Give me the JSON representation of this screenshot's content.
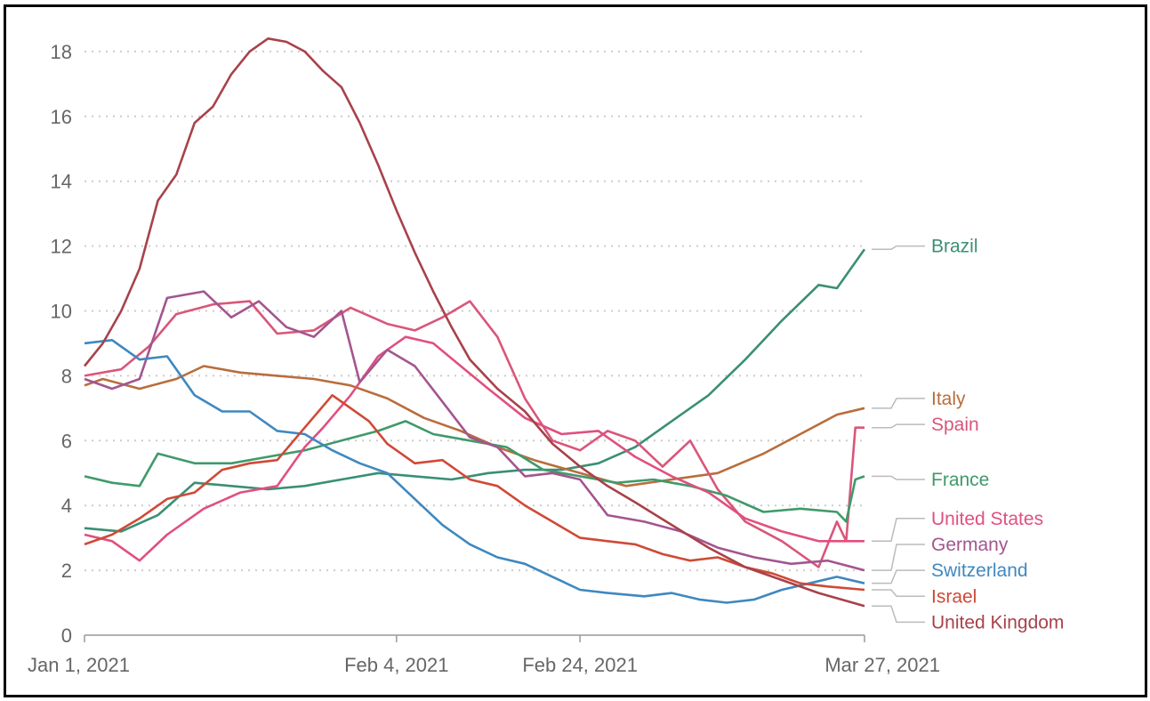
{
  "chart_data": {
    "type": "line",
    "title": "",
    "xlabel": "",
    "ylabel": "",
    "x_start": "2021-01-01",
    "x_end": "2021-03-27",
    "ylim": [
      0,
      18.8
    ],
    "y_ticks": [
      0,
      2,
      4,
      6,
      8,
      10,
      12,
      14,
      16,
      18
    ],
    "x_ticks": [
      {
        "date": "2021-01-01",
        "label": "Jan 1, 2021"
      },
      {
        "date": "2021-02-04",
        "label": "Feb 4, 2021"
      },
      {
        "date": "2021-02-24",
        "label": "Feb 24, 2021"
      },
      {
        "date": "2021-03-27",
        "label": "Mar 27, 2021"
      }
    ],
    "grid": "horizontal-dotted",
    "legend": "end-of-line labels, right",
    "series": [
      {
        "name": "Brazil",
        "color": "#3a8f74",
        "points": [
          [
            "2021-01-01",
            3.3
          ],
          [
            "2021-01-05",
            3.2
          ],
          [
            "2021-01-09",
            3.7
          ],
          [
            "2021-01-13",
            4.7
          ],
          [
            "2021-01-17",
            4.6
          ],
          [
            "2021-01-21",
            4.5
          ],
          [
            "2021-01-25",
            4.6
          ],
          [
            "2021-01-29",
            4.8
          ],
          [
            "2021-02-02",
            5.0
          ],
          [
            "2021-02-06",
            4.9
          ],
          [
            "2021-02-10",
            4.8
          ],
          [
            "2021-02-14",
            5.0
          ],
          [
            "2021-02-18",
            5.1
          ],
          [
            "2021-02-22",
            5.1
          ],
          [
            "2021-02-26",
            5.3
          ],
          [
            "2021-03-02",
            5.8
          ],
          [
            "2021-03-06",
            6.6
          ],
          [
            "2021-03-10",
            7.4
          ],
          [
            "2021-03-14",
            8.5
          ],
          [
            "2021-03-18",
            9.7
          ],
          [
            "2021-03-22",
            10.8
          ],
          [
            "2021-03-24",
            10.7
          ],
          [
            "2021-03-27",
            11.9
          ]
        ]
      },
      {
        "name": "Italy",
        "color": "#b96d3d",
        "points": [
          [
            "2021-01-01",
            7.7
          ],
          [
            "2021-01-03",
            7.9
          ],
          [
            "2021-01-07",
            7.6
          ],
          [
            "2021-01-11",
            7.9
          ],
          [
            "2021-01-14",
            8.3
          ],
          [
            "2021-01-18",
            8.1
          ],
          [
            "2021-01-22",
            8.0
          ],
          [
            "2021-01-26",
            7.9
          ],
          [
            "2021-01-30",
            7.7
          ],
          [
            "2021-02-03",
            7.3
          ],
          [
            "2021-02-07",
            6.7
          ],
          [
            "2021-02-11",
            6.3
          ],
          [
            "2021-02-15",
            5.8
          ],
          [
            "2021-02-19",
            5.4
          ],
          [
            "2021-02-24",
            5.0
          ],
          [
            "2021-03-01",
            4.6
          ],
          [
            "2021-03-06",
            4.8
          ],
          [
            "2021-03-11",
            5.0
          ],
          [
            "2021-03-16",
            5.6
          ],
          [
            "2021-03-20",
            6.2
          ],
          [
            "2021-03-24",
            6.8
          ],
          [
            "2021-03-27",
            7.0
          ]
        ]
      },
      {
        "name": "Spain",
        "color": "#d9567a",
        "points": [
          [
            "2021-01-01",
            8.0
          ],
          [
            "2021-01-05",
            8.2
          ],
          [
            "2021-01-08",
            8.9
          ],
          [
            "2021-01-11",
            9.9
          ],
          [
            "2021-01-15",
            10.2
          ],
          [
            "2021-01-19",
            10.3
          ],
          [
            "2021-01-22",
            9.3
          ],
          [
            "2021-01-26",
            9.4
          ],
          [
            "2021-01-30",
            10.1
          ],
          [
            "2021-02-03",
            9.6
          ],
          [
            "2021-02-06",
            9.4
          ],
          [
            "2021-02-09",
            9.8
          ],
          [
            "2021-02-12",
            10.3
          ],
          [
            "2021-02-15",
            9.2
          ],
          [
            "2021-02-18",
            7.3
          ],
          [
            "2021-02-21",
            6.0
          ],
          [
            "2021-02-24",
            5.7
          ],
          [
            "2021-02-27",
            6.3
          ],
          [
            "2021-03-02",
            6.0
          ],
          [
            "2021-03-05",
            5.2
          ],
          [
            "2021-03-08",
            6.0
          ],
          [
            "2021-03-11",
            4.5
          ],
          [
            "2021-03-14",
            3.5
          ],
          [
            "2021-03-18",
            2.9
          ],
          [
            "2021-03-22",
            2.1
          ],
          [
            "2021-03-24",
            3.5
          ],
          [
            "2021-03-25",
            2.9
          ],
          [
            "2021-03-26",
            6.4
          ],
          [
            "2021-03-27",
            6.4
          ]
        ]
      },
      {
        "name": "France",
        "color": "#3f9a6a",
        "points": [
          [
            "2021-01-01",
            4.9
          ],
          [
            "2021-01-04",
            4.7
          ],
          [
            "2021-01-07",
            4.6
          ],
          [
            "2021-01-09",
            5.6
          ],
          [
            "2021-01-13",
            5.3
          ],
          [
            "2021-01-17",
            5.3
          ],
          [
            "2021-01-21",
            5.5
          ],
          [
            "2021-01-25",
            5.7
          ],
          [
            "2021-01-29",
            6.0
          ],
          [
            "2021-02-02",
            6.3
          ],
          [
            "2021-02-05",
            6.6
          ],
          [
            "2021-02-08",
            6.2
          ],
          [
            "2021-02-12",
            6.0
          ],
          [
            "2021-02-16",
            5.8
          ],
          [
            "2021-02-20",
            5.1
          ],
          [
            "2021-02-24",
            4.9
          ],
          [
            "2021-02-28",
            4.7
          ],
          [
            "2021-03-04",
            4.8
          ],
          [
            "2021-03-08",
            4.6
          ],
          [
            "2021-03-12",
            4.3
          ],
          [
            "2021-03-16",
            3.8
          ],
          [
            "2021-03-20",
            3.9
          ],
          [
            "2021-03-24",
            3.8
          ],
          [
            "2021-03-25",
            3.5
          ],
          [
            "2021-03-26",
            4.8
          ],
          [
            "2021-03-27",
            4.9
          ]
        ]
      },
      {
        "name": "United States",
        "color": "#e0507f",
        "points": [
          [
            "2021-01-01",
            3.1
          ],
          [
            "2021-01-04",
            2.9
          ],
          [
            "2021-01-07",
            2.3
          ],
          [
            "2021-01-10",
            3.1
          ],
          [
            "2021-01-14",
            3.9
          ],
          [
            "2021-01-18",
            4.4
          ],
          [
            "2021-01-22",
            4.6
          ],
          [
            "2021-01-25",
            5.8
          ],
          [
            "2021-01-27",
            6.4
          ],
          [
            "2021-01-30",
            7.4
          ],
          [
            "2021-02-02",
            8.6
          ],
          [
            "2021-02-05",
            9.2
          ],
          [
            "2021-02-08",
            9.0
          ],
          [
            "2021-02-11",
            8.3
          ],
          [
            "2021-02-14",
            7.6
          ],
          [
            "2021-02-18",
            6.7
          ],
          [
            "2021-02-22",
            6.2
          ],
          [
            "2021-02-26",
            6.3
          ],
          [
            "2021-03-02",
            5.5
          ],
          [
            "2021-03-06",
            4.9
          ],
          [
            "2021-03-10",
            4.4
          ],
          [
            "2021-03-14",
            3.6
          ],
          [
            "2021-03-18",
            3.2
          ],
          [
            "2021-03-22",
            2.9
          ],
          [
            "2021-03-27",
            2.9
          ]
        ]
      },
      {
        "name": "Germany",
        "color": "#a3558f",
        "points": [
          [
            "2021-01-01",
            7.9
          ],
          [
            "2021-01-04",
            7.6
          ],
          [
            "2021-01-07",
            7.9
          ],
          [
            "2021-01-10",
            10.4
          ],
          [
            "2021-01-14",
            10.6
          ],
          [
            "2021-01-17",
            9.8
          ],
          [
            "2021-01-20",
            10.3
          ],
          [
            "2021-01-23",
            9.5
          ],
          [
            "2021-01-26",
            9.2
          ],
          [
            "2021-01-29",
            10.0
          ],
          [
            "2021-01-31",
            7.8
          ],
          [
            "2021-02-03",
            8.8
          ],
          [
            "2021-02-06",
            8.3
          ],
          [
            "2021-02-09",
            7.2
          ],
          [
            "2021-02-12",
            6.1
          ],
          [
            "2021-02-15",
            5.8
          ],
          [
            "2021-02-18",
            4.9
          ],
          [
            "2021-02-21",
            5.0
          ],
          [
            "2021-02-24",
            4.8
          ],
          [
            "2021-02-27",
            3.7
          ],
          [
            "2021-03-03",
            3.5
          ],
          [
            "2021-03-07",
            3.2
          ],
          [
            "2021-03-11",
            2.7
          ],
          [
            "2021-03-15",
            2.4
          ],
          [
            "2021-03-19",
            2.2
          ],
          [
            "2021-03-23",
            2.3
          ],
          [
            "2021-03-27",
            2.0
          ]
        ]
      },
      {
        "name": "Switzerland",
        "color": "#3f88bf",
        "points": [
          [
            "2021-01-01",
            9.0
          ],
          [
            "2021-01-04",
            9.1
          ],
          [
            "2021-01-07",
            8.5
          ],
          [
            "2021-01-10",
            8.6
          ],
          [
            "2021-01-13",
            7.4
          ],
          [
            "2021-01-16",
            6.9
          ],
          [
            "2021-01-19",
            6.9
          ],
          [
            "2021-01-22",
            6.3
          ],
          [
            "2021-01-25",
            6.2
          ],
          [
            "2021-01-28",
            5.7
          ],
          [
            "2021-01-31",
            5.3
          ],
          [
            "2021-02-03",
            5.0
          ],
          [
            "2021-02-06",
            4.2
          ],
          [
            "2021-02-09",
            3.4
          ],
          [
            "2021-02-12",
            2.8
          ],
          [
            "2021-02-15",
            2.4
          ],
          [
            "2021-02-18",
            2.2
          ],
          [
            "2021-02-21",
            1.8
          ],
          [
            "2021-02-24",
            1.4
          ],
          [
            "2021-02-27",
            1.3
          ],
          [
            "2021-03-03",
            1.2
          ],
          [
            "2021-03-06",
            1.3
          ],
          [
            "2021-03-09",
            1.1
          ],
          [
            "2021-03-12",
            1.0
          ],
          [
            "2021-03-15",
            1.1
          ],
          [
            "2021-03-18",
            1.4
          ],
          [
            "2021-03-21",
            1.6
          ],
          [
            "2021-03-24",
            1.8
          ],
          [
            "2021-03-27",
            1.6
          ]
        ]
      },
      {
        "name": "Israel",
        "color": "#cf4a36",
        "points": [
          [
            "2021-01-01",
            2.8
          ],
          [
            "2021-01-04",
            3.1
          ],
          [
            "2021-01-07",
            3.6
          ],
          [
            "2021-01-10",
            4.2
          ],
          [
            "2021-01-13",
            4.4
          ],
          [
            "2021-01-16",
            5.1
          ],
          [
            "2021-01-19",
            5.3
          ],
          [
            "2021-01-22",
            5.4
          ],
          [
            "2021-01-25",
            6.4
          ],
          [
            "2021-01-28",
            7.4
          ],
          [
            "2021-01-30",
            7.0
          ],
          [
            "2021-02-01",
            6.6
          ],
          [
            "2021-02-03",
            5.9
          ],
          [
            "2021-02-06",
            5.3
          ],
          [
            "2021-02-09",
            5.4
          ],
          [
            "2021-02-12",
            4.8
          ],
          [
            "2021-02-15",
            4.6
          ],
          [
            "2021-02-18",
            4.0
          ],
          [
            "2021-02-21",
            3.5
          ],
          [
            "2021-02-24",
            3.0
          ],
          [
            "2021-02-27",
            2.9
          ],
          [
            "2021-03-02",
            2.8
          ],
          [
            "2021-03-05",
            2.5
          ],
          [
            "2021-03-08",
            2.3
          ],
          [
            "2021-03-11",
            2.4
          ],
          [
            "2021-03-14",
            2.1
          ],
          [
            "2021-03-17",
            1.9
          ],
          [
            "2021-03-20",
            1.6
          ],
          [
            "2021-03-23",
            1.5
          ],
          [
            "2021-03-27",
            1.4
          ]
        ]
      },
      {
        "name": "United Kingdom",
        "color": "#a8424a",
        "points": [
          [
            "2021-01-01",
            8.3
          ],
          [
            "2021-01-03",
            9.0
          ],
          [
            "2021-01-05",
            10.0
          ],
          [
            "2021-01-07",
            11.3
          ],
          [
            "2021-01-09",
            13.4
          ],
          [
            "2021-01-11",
            14.2
          ],
          [
            "2021-01-13",
            15.8
          ],
          [
            "2021-01-15",
            16.3
          ],
          [
            "2021-01-17",
            17.3
          ],
          [
            "2021-01-19",
            18.0
          ],
          [
            "2021-01-21",
            18.4
          ],
          [
            "2021-01-23",
            18.3
          ],
          [
            "2021-01-25",
            18.0
          ],
          [
            "2021-01-27",
            17.4
          ],
          [
            "2021-01-29",
            16.9
          ],
          [
            "2021-01-31",
            15.8
          ],
          [
            "2021-02-02",
            14.5
          ],
          [
            "2021-02-04",
            13.1
          ],
          [
            "2021-02-06",
            11.8
          ],
          [
            "2021-02-08",
            10.6
          ],
          [
            "2021-02-10",
            9.5
          ],
          [
            "2021-02-12",
            8.5
          ],
          [
            "2021-02-15",
            7.6
          ],
          [
            "2021-02-18",
            6.9
          ],
          [
            "2021-02-21",
            5.9
          ],
          [
            "2021-02-24",
            5.2
          ],
          [
            "2021-02-27",
            4.6
          ],
          [
            "2021-03-02",
            4.1
          ],
          [
            "2021-03-06",
            3.4
          ],
          [
            "2021-03-10",
            2.7
          ],
          [
            "2021-03-14",
            2.1
          ],
          [
            "2021-03-18",
            1.7
          ],
          [
            "2021-03-22",
            1.3
          ],
          [
            "2021-03-27",
            0.9
          ]
        ]
      }
    ],
    "end_labels": [
      {
        "series": "Brazil",
        "label_y": 12.0
      },
      {
        "series": "Italy",
        "label_y": 7.3
      },
      {
        "series": "Spain",
        "label_y": 6.5
      },
      {
        "series": "France",
        "label_y": 4.8
      },
      {
        "series": "United States",
        "label_y": 3.6
      },
      {
        "series": "Germany",
        "label_y": 2.8
      },
      {
        "series": "Switzerland",
        "label_y": 2.0
      },
      {
        "series": "Israel",
        "label_y": 1.2
      },
      {
        "series": "United Kingdom",
        "label_y": 0.4
      }
    ]
  }
}
